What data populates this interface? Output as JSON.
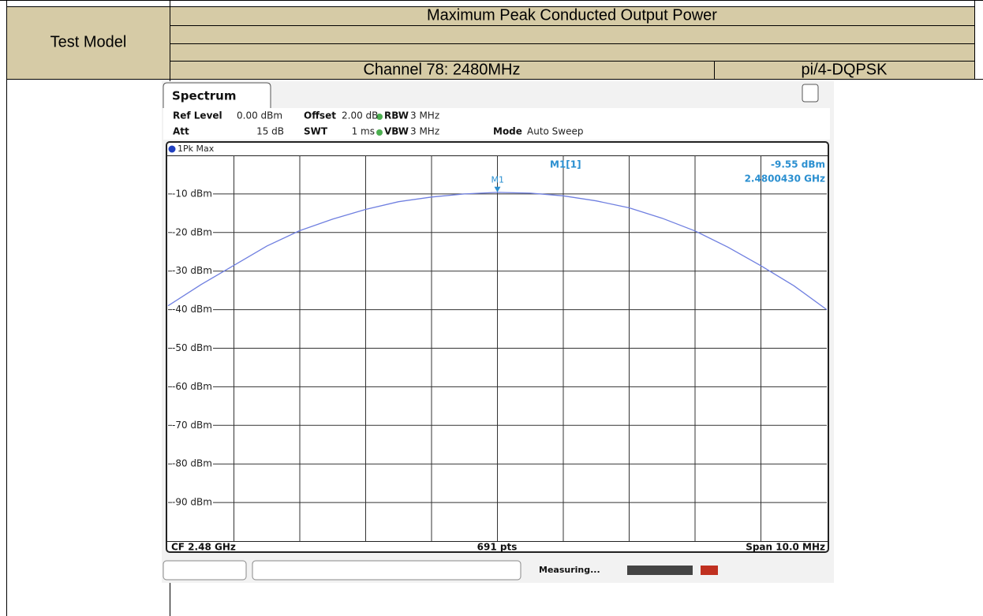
{
  "table": {
    "header": "Maximum Peak Conducted Output Power",
    "row_label": "Test Model",
    "channel": "Channel 78: 2480MHz",
    "modulation": "pi/4-DQPSK"
  },
  "spectrum": {
    "tab": "Spectrum",
    "settings": [
      {
        "label": "Ref Level",
        "value": "0.00 dBm"
      },
      {
        "label": "Offset",
        "value": "2.00 dB"
      },
      {
        "label": "RBW",
        "value": "3 MHz"
      },
      {
        "label": "Att",
        "value": "15 dB"
      },
      {
        "label": "SWT",
        "value": "1 ms"
      },
      {
        "label": "VBW",
        "value": "3 MHz"
      },
      {
        "label": "Mode",
        "value": "Auto Sweep"
      }
    ],
    "trace_label": "1Pk Max",
    "ylim": [
      -100,
      0
    ],
    "yticks": [
      {
        "value": -10,
        "label": "-10 dBm"
      },
      {
        "value": -20,
        "label": "-20 dBm"
      },
      {
        "value": -30,
        "label": "-30 dBm"
      },
      {
        "value": -40,
        "label": "-40 dBm"
      },
      {
        "value": -50,
        "label": "-50 dBm"
      },
      {
        "value": -60,
        "label": "-60 dBm"
      },
      {
        "value": -70,
        "label": "-70 dBm"
      },
      {
        "value": -80,
        "label": "-80 dBm"
      },
      {
        "value": -90,
        "label": "-90 dBm"
      }
    ],
    "color": "#6f7fe0",
    "values": [
      -39,
      -33.5,
      -28.5,
      -23.5,
      -19.5,
      -16.5,
      -14,
      -12,
      -10.8,
      -10,
      -9.6,
      -9.8,
      -10.5,
      -11.8,
      -13.6,
      -16.3,
      -19.6,
      -23.8,
      -28.6,
      -33.8,
      -40
    ],
    "marker": {
      "name": "M1",
      "label": "M1[1]",
      "value": -9.55,
      "value_label": "-9.55 dBm",
      "frequency": "2.4800430 GHz"
    },
    "footer": {
      "center_frequency": "CF 2.48 GHz",
      "points": "691 pts",
      "span": "Span 10.0 MHz"
    },
    "status": "Measuring..."
  }
}
